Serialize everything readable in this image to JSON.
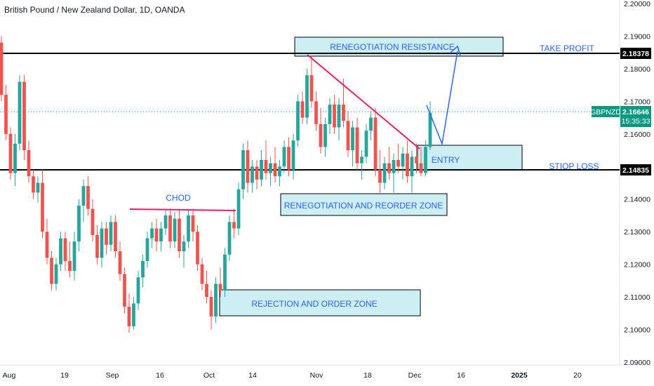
{
  "header": {
    "title": "British Pound / New Zealand Dollar, 1D, OANDA"
  },
  "chart_data": {
    "type": "candlestick",
    "symbol": "GBPNZD",
    "ylim": [
      2.09,
      2.2
    ],
    "y_ticks": [
      "2.20000",
      "2.19000",
      "2.18000",
      "2.17000",
      "2.16000",
      "2.15000",
      "2.14000",
      "2.13000",
      "2.12000",
      "2.11000",
      "2.10000",
      "2.09000"
    ],
    "x_ticks": [
      "Aug",
      "19",
      "Sep",
      "16",
      "Oct",
      "14",
      "Nov",
      "18",
      "Dec",
      "16",
      "2025",
      "20"
    ],
    "candles": [
      [
        2.188,
        2.19,
        2.17,
        2.172
      ],
      [
        2.172,
        2.175,
        2.158,
        2.16
      ],
      [
        2.16,
        2.162,
        2.146,
        2.148
      ],
      [
        2.148,
        2.16,
        2.144,
        2.157
      ],
      [
        2.157,
        2.178,
        2.155,
        2.176
      ],
      [
        2.176,
        2.178,
        2.152,
        2.155
      ],
      [
        2.155,
        2.158,
        2.145,
        2.147
      ],
      [
        2.147,
        2.149,
        2.14,
        2.142
      ],
      [
        2.142,
        2.147,
        2.139,
        2.145
      ],
      [
        2.145,
        2.149,
        2.128,
        2.13
      ],
      [
        2.13,
        2.134,
        2.12,
        2.122
      ],
      [
        2.122,
        2.124,
        2.112,
        2.114
      ],
      [
        2.114,
        2.122,
        2.112,
        2.12
      ],
      [
        2.12,
        2.13,
        2.118,
        2.128
      ],
      [
        2.128,
        2.13,
        2.118,
        2.121
      ],
      [
        2.121,
        2.127,
        2.116,
        2.118
      ],
      [
        2.118,
        2.13,
        2.115,
        2.127
      ],
      [
        2.127,
        2.14,
        2.124,
        2.138
      ],
      [
        2.138,
        2.146,
        2.133,
        2.144
      ],
      [
        2.144,
        2.147,
        2.135,
        2.137
      ],
      [
        2.137,
        2.14,
        2.127,
        2.129
      ],
      [
        2.129,
        2.132,
        2.12,
        2.122
      ],
      [
        2.122,
        2.133,
        2.119,
        2.131
      ],
      [
        2.131,
        2.133,
        2.123,
        2.126
      ],
      [
        2.126,
        2.135,
        2.124,
        2.133
      ],
      [
        2.133,
        2.135,
        2.122,
        2.124
      ],
      [
        2.124,
        2.127,
        2.115,
        2.117
      ],
      [
        2.117,
        2.119,
        2.105,
        2.107
      ],
      [
        2.107,
        2.111,
        2.099,
        2.101
      ],
      [
        2.101,
        2.11,
        2.1,
        2.108
      ],
      [
        2.108,
        2.118,
        2.106,
        2.116
      ],
      [
        2.116,
        2.123,
        2.113,
        2.121
      ],
      [
        2.121,
        2.13,
        2.119,
        2.128
      ],
      [
        2.128,
        2.133,
        2.125,
        2.131
      ],
      [
        2.131,
        2.134,
        2.124,
        2.127
      ],
      [
        2.127,
        2.133,
        2.124,
        2.131
      ],
      [
        2.131,
        2.137,
        2.129,
        2.135
      ],
      [
        2.135,
        2.137,
        2.125,
        2.127
      ],
      [
        2.127,
        2.136,
        2.125,
        2.134
      ],
      [
        2.134,
        2.137,
        2.122,
        2.124
      ],
      [
        2.124,
        2.129,
        2.119,
        2.127
      ],
      [
        2.127,
        2.137,
        2.125,
        2.135
      ],
      [
        2.135,
        2.137,
        2.127,
        2.13
      ],
      [
        2.13,
        2.132,
        2.118,
        2.12
      ],
      [
        2.12,
        2.122,
        2.112,
        2.114
      ],
      [
        2.114,
        2.118,
        2.108,
        2.11
      ],
      [
        2.11,
        2.112,
        2.1,
        2.104
      ],
      [
        2.104,
        2.116,
        2.102,
        2.114
      ],
      [
        2.114,
        2.119,
        2.11,
        2.112
      ],
      [
        2.112,
        2.125,
        2.11,
        2.123
      ],
      [
        2.123,
        2.135,
        2.121,
        2.133
      ],
      [
        2.133,
        2.137,
        2.128,
        2.131
      ],
      [
        2.131,
        2.145,
        2.129,
        2.143
      ],
      [
        2.143,
        2.157,
        2.14,
        2.155
      ],
      [
        2.155,
        2.158,
        2.142,
        2.145
      ],
      [
        2.145,
        2.152,
        2.142,
        2.15
      ],
      [
        2.15,
        2.152,
        2.143,
        2.146
      ],
      [
        2.146,
        2.155,
        2.144,
        2.152
      ],
      [
        2.152,
        2.158,
        2.146,
        2.148
      ],
      [
        2.148,
        2.153,
        2.144,
        2.151
      ],
      [
        2.151,
        2.156,
        2.145,
        2.147
      ],
      [
        2.147,
        2.152,
        2.144,
        2.15
      ],
      [
        2.15,
        2.158,
        2.148,
        2.156
      ],
      [
        2.156,
        2.159,
        2.147,
        2.149
      ],
      [
        2.149,
        2.16,
        2.146,
        2.158
      ],
      [
        2.158,
        2.172,
        2.156,
        2.17
      ],
      [
        2.17,
        2.173,
        2.163,
        2.165
      ],
      [
        2.165,
        2.18,
        2.163,
        2.178
      ],
      [
        2.178,
        2.184,
        2.168,
        2.17
      ],
      [
        2.17,
        2.173,
        2.161,
        2.163
      ],
      [
        2.163,
        2.168,
        2.154,
        2.156
      ],
      [
        2.156,
        2.165,
        2.153,
        2.163
      ],
      [
        2.163,
        2.171,
        2.16,
        2.169
      ],
      [
        2.169,
        2.172,
        2.16,
        2.162
      ],
      [
        2.162,
        2.171,
        2.158,
        2.169
      ],
      [
        2.169,
        2.177,
        2.162,
        2.164
      ],
      [
        2.164,
        2.167,
        2.153,
        2.155
      ],
      [
        2.155,
        2.164,
        2.15,
        2.162
      ],
      [
        2.162,
        2.165,
        2.149,
        2.151
      ],
      [
        2.151,
        2.155,
        2.146,
        2.153
      ],
      [
        2.153,
        2.163,
        2.151,
        2.161
      ],
      [
        2.161,
        2.167,
        2.158,
        2.165
      ],
      [
        2.165,
        2.168,
        2.147,
        2.149
      ],
      [
        2.149,
        2.155,
        2.142,
        2.145
      ],
      [
        2.145,
        2.153,
        2.143,
        2.151
      ],
      [
        2.151,
        2.156,
        2.146,
        2.148
      ],
      [
        2.148,
        2.154,
        2.142,
        2.152
      ],
      [
        2.152,
        2.157,
        2.148,
        2.15
      ],
      [
        2.15,
        2.156,
        2.146,
        2.154
      ],
      [
        2.154,
        2.158,
        2.145,
        2.147
      ],
      [
        2.147,
        2.155,
        2.142,
        2.153
      ],
      [
        2.153,
        2.157,
        2.148,
        2.151
      ],
      [
        2.151,
        2.156,
        2.147,
        2.148
      ],
      [
        2.148,
        2.158,
        2.147,
        2.156
      ],
      [
        2.156,
        2.17,
        2.155,
        2.1665
      ]
    ],
    "levels": [
      {
        "label": "2.18378",
        "value": 2.18378,
        "color": "#000000"
      },
      {
        "label": "2.14835",
        "value": 2.14835,
        "color": "#000000"
      }
    ],
    "current_price": {
      "symbol": "GBPNZD",
      "value": "2.16646",
      "countdown": "15:35:33",
      "y": 2.16646,
      "color": "#089981"
    },
    "annotations": {
      "take_profit": "TAKE PROFIT",
      "stop_loss": "STIOP LOSS",
      "chod": "CHOD",
      "entry": "ENTRY",
      "renegotiation_resistance": "RENEGOTIATION RESISTANCE",
      "renegotiation_reorder_zone": "RENEGOTIATION AND REORDER ZONE",
      "rejection_order_zone": "REJECTION AND ORDER ZONE"
    },
    "colors": {
      "up": "#26a69a",
      "down": "#ef5350",
      "annotation_text": "#2962ff",
      "zone_fill": "#cdeef3",
      "trendline": "#e91e63"
    }
  }
}
